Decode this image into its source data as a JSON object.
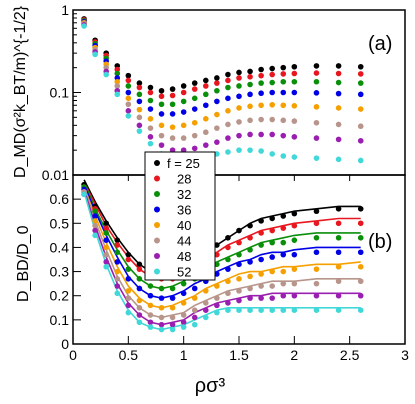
{
  "chart_data": [
    {
      "type": "scatter",
      "panel_label": "(a)",
      "ylabel": "D_MD(σ²k_BT/m)^{-1/2}",
      "yscale": "log",
      "ylim": [
        0.01,
        1
      ],
      "yticks": [
        {
          "v": 1,
          "t": "1"
        },
        {
          "v": 0.1,
          "t": "0.1"
        },
        {
          "v": 0.01,
          "t": "0.01"
        }
      ],
      "xlim": [
        0,
        3
      ],
      "x": [
        0.1,
        0.2,
        0.3,
        0.4,
        0.5,
        0.6,
        0.7,
        0.8,
        0.9,
        1.0,
        1.1,
        1.2,
        1.3,
        1.4,
        1.5,
        1.6,
        1.7,
        1.8,
        1.9,
        2.0,
        2.2,
        2.4,
        2.6
      ],
      "series": [
        {
          "name": "25",
          "color": "#000000",
          "values": [
            0.78,
            0.43,
            0.3,
            0.21,
            0.16,
            0.13,
            0.115,
            0.105,
            0.11,
            0.12,
            0.13,
            0.14,
            0.15,
            0.165,
            0.175,
            0.18,
            0.19,
            0.195,
            0.2,
            0.205,
            0.21,
            0.21,
            0.205
          ]
        },
        {
          "name": "28",
          "color": "#e8161e",
          "values": [
            0.76,
            0.41,
            0.28,
            0.19,
            0.14,
            0.115,
            0.1,
            0.09,
            0.092,
            0.1,
            0.11,
            0.12,
            0.13,
            0.14,
            0.15,
            0.155,
            0.16,
            0.165,
            0.168,
            0.17,
            0.172,
            0.17,
            0.168
          ]
        },
        {
          "name": "32",
          "color": "#0a8f0a",
          "values": [
            0.74,
            0.39,
            0.26,
            0.17,
            0.12,
            0.095,
            0.08,
            0.072,
            0.072,
            0.078,
            0.085,
            0.095,
            0.105,
            0.115,
            0.12,
            0.125,
            0.13,
            0.132,
            0.135,
            0.135,
            0.135,
            0.132,
            0.13
          ]
        },
        {
          "name": "36",
          "color": "#0000e6",
          "values": [
            0.72,
            0.37,
            0.24,
            0.15,
            0.1,
            0.078,
            0.063,
            0.055,
            0.055,
            0.058,
            0.063,
            0.07,
            0.078,
            0.085,
            0.09,
            0.095,
            0.098,
            0.1,
            0.1,
            0.1,
            0.099,
            0.097,
            0.095
          ]
        },
        {
          "name": "40",
          "color": "#f5a000",
          "values": [
            0.7,
            0.35,
            0.22,
            0.135,
            0.085,
            0.062,
            0.048,
            0.04,
            0.038,
            0.04,
            0.043,
            0.048,
            0.054,
            0.06,
            0.065,
            0.068,
            0.07,
            0.071,
            0.07,
            0.069,
            0.067,
            0.065,
            0.063
          ]
        },
        {
          "name": "44",
          "color": "#b8958b",
          "values": [
            0.68,
            0.33,
            0.2,
            0.12,
            0.072,
            0.05,
            0.037,
            0.03,
            0.028,
            0.028,
            0.03,
            0.033,
            0.037,
            0.041,
            0.044,
            0.046,
            0.047,
            0.047,
            0.046,
            0.045,
            0.043,
            0.041,
            0.039
          ]
        },
        {
          "name": "48",
          "color": "#9a1fb0",
          "values": [
            0.66,
            0.31,
            0.18,
            0.105,
            0.06,
            0.04,
            0.029,
            0.023,
            0.02,
            0.02,
            0.021,
            0.023,
            0.025,
            0.028,
            0.03,
            0.031,
            0.031,
            0.031,
            0.03,
            0.029,
            0.028,
            0.027,
            0.026
          ]
        },
        {
          "name": "52",
          "color": "#40d8d8",
          "values": [
            0.64,
            0.29,
            0.165,
            0.095,
            0.052,
            0.034,
            0.024,
            0.018,
            0.0155,
            0.015,
            0.0155,
            0.016,
            0.018,
            0.019,
            0.02,
            0.02,
            0.0195,
            0.018,
            0.017,
            0.0165,
            0.016,
            0.0155,
            0.015
          ]
        }
      ],
      "legend": {
        "title_prefix": "f = ",
        "placement": "lower-left"
      }
    },
    {
      "type": "scatter",
      "panel_label": "(b)",
      "ylabel": "D_BD/D_0",
      "xlabel": "ρσ³",
      "xlim": [
        0,
        3
      ],
      "ylim": [
        0,
        0.7
      ],
      "xticks": [
        {
          "v": 0,
          "t": "0"
        },
        {
          "v": 0.5,
          "t": "0.5"
        },
        {
          "v": 1,
          "t": "1"
        },
        {
          "v": 1.5,
          "t": "1.5"
        },
        {
          "v": 2,
          "t": "2"
        },
        {
          "v": 2.5,
          "t": "2.5"
        },
        {
          "v": 3,
          "t": "3"
        }
      ],
      "yticks": [
        {
          "v": 0,
          "t": "0"
        },
        {
          "v": 0.1,
          "t": "0.1"
        },
        {
          "v": 0.2,
          "t": "0.2"
        },
        {
          "v": 0.3,
          "t": "0.3"
        },
        {
          "v": 0.4,
          "t": "0.4"
        },
        {
          "v": 0.5,
          "t": "0.5"
        },
        {
          "v": 0.6,
          "t": "0.6"
        }
      ],
      "x": [
        0.1,
        0.2,
        0.3,
        0.4,
        0.5,
        0.6,
        0.7,
        0.8,
        0.9,
        1.0,
        1.1,
        1.2,
        1.3,
        1.4,
        1.5,
        1.6,
        1.7,
        1.8,
        1.9,
        2.0,
        2.2,
        2.4,
        2.6
      ],
      "series": [
        {
          "name": "25",
          "color": "#000000",
          "values": [
            0.66,
            0.57,
            0.5,
            0.43,
            0.37,
            0.33,
            0.3,
            0.29,
            0.29,
            0.31,
            0.34,
            0.37,
            0.41,
            0.44,
            0.47,
            0.49,
            0.51,
            0.52,
            0.53,
            0.54,
            0.55,
            0.56,
            0.56
          ],
          "fit": [
            0.68,
            0.59,
            0.51,
            0.44,
            0.38,
            0.33,
            0.3,
            0.29,
            0.3,
            0.32,
            0.35,
            0.38,
            0.41,
            0.44,
            0.47,
            0.5,
            0.52,
            0.53,
            0.54,
            0.55,
            0.56,
            0.57,
            0.57
          ]
        },
        {
          "name": "28",
          "color": "#e8161e",
          "values": [
            0.65,
            0.56,
            0.48,
            0.41,
            0.35,
            0.31,
            0.28,
            0.27,
            0.27,
            0.29,
            0.31,
            0.34,
            0.37,
            0.4,
            0.42,
            0.44,
            0.46,
            0.47,
            0.48,
            0.49,
            0.5,
            0.5,
            0.5
          ],
          "fit": [
            0.67,
            0.58,
            0.49,
            0.42,
            0.36,
            0.31,
            0.28,
            0.27,
            0.28,
            0.3,
            0.33,
            0.35,
            0.38,
            0.41,
            0.43,
            0.45,
            0.47,
            0.48,
            0.49,
            0.5,
            0.51,
            0.52,
            0.52
          ]
        },
        {
          "name": "32",
          "color": "#0a8f0a",
          "values": [
            0.65,
            0.55,
            0.46,
            0.38,
            0.31,
            0.27,
            0.24,
            0.23,
            0.23,
            0.25,
            0.27,
            0.3,
            0.33,
            0.35,
            0.37,
            0.39,
            0.41,
            0.42,
            0.42,
            0.43,
            0.44,
            0.44,
            0.44
          ],
          "fit": [
            0.67,
            0.56,
            0.47,
            0.39,
            0.32,
            0.27,
            0.24,
            0.23,
            0.24,
            0.26,
            0.29,
            0.31,
            0.34,
            0.36,
            0.38,
            0.4,
            0.42,
            0.43,
            0.44,
            0.45,
            0.46,
            0.46,
            0.46
          ]
        },
        {
          "name": "36",
          "color": "#0000e6",
          "values": [
            0.64,
            0.53,
            0.43,
            0.34,
            0.27,
            0.23,
            0.2,
            0.19,
            0.19,
            0.21,
            0.23,
            0.26,
            0.29,
            0.31,
            0.33,
            0.34,
            0.35,
            0.36,
            0.37,
            0.37,
            0.38,
            0.38,
            0.38
          ],
          "fit": [
            0.66,
            0.55,
            0.45,
            0.36,
            0.28,
            0.23,
            0.2,
            0.19,
            0.2,
            0.22,
            0.25,
            0.27,
            0.3,
            0.32,
            0.34,
            0.35,
            0.37,
            0.38,
            0.38,
            0.39,
            0.4,
            0.4,
            0.4
          ]
        },
        {
          "name": "40",
          "color": "#f5a000",
          "values": [
            0.63,
            0.51,
            0.4,
            0.3,
            0.22,
            0.18,
            0.16,
            0.15,
            0.15,
            0.17,
            0.19,
            0.22,
            0.24,
            0.26,
            0.27,
            0.28,
            0.29,
            0.3,
            0.3,
            0.31,
            0.31,
            0.32,
            0.32
          ],
          "fit": [
            0.65,
            0.53,
            0.42,
            0.32,
            0.24,
            0.19,
            0.16,
            0.15,
            0.16,
            0.18,
            0.2,
            0.23,
            0.25,
            0.27,
            0.29,
            0.3,
            0.3,
            0.31,
            0.32,
            0.32,
            0.33,
            0.33,
            0.34
          ]
        },
        {
          "name": "44",
          "color": "#b8958b",
          "values": [
            0.63,
            0.49,
            0.37,
            0.27,
            0.19,
            0.15,
            0.12,
            0.11,
            0.11,
            0.12,
            0.14,
            0.17,
            0.19,
            0.21,
            0.22,
            0.23,
            0.24,
            0.24,
            0.25,
            0.25,
            0.25,
            0.26,
            0.26
          ],
          "fit": [
            0.65,
            0.51,
            0.39,
            0.28,
            0.2,
            0.15,
            0.12,
            0.11,
            0.12,
            0.13,
            0.16,
            0.18,
            0.2,
            0.22,
            0.23,
            0.24,
            0.25,
            0.26,
            0.26,
            0.26,
            0.27,
            0.27,
            0.27
          ]
        },
        {
          "name": "48",
          "color": "#9a1fb0",
          "values": [
            0.62,
            0.47,
            0.34,
            0.24,
            0.16,
            0.12,
            0.09,
            0.08,
            0.08,
            0.09,
            0.11,
            0.14,
            0.16,
            0.17,
            0.18,
            0.19,
            0.19,
            0.19,
            0.2,
            0.2,
            0.2,
            0.2,
            0.2
          ],
          "fit": [
            0.64,
            0.49,
            0.36,
            0.25,
            0.17,
            0.12,
            0.09,
            0.08,
            0.09,
            0.1,
            0.13,
            0.15,
            0.17,
            0.18,
            0.19,
            0.2,
            0.2,
            0.21,
            0.21,
            0.21,
            0.21,
            0.21,
            0.21
          ]
        },
        {
          "name": "52",
          "color": "#40d8d8",
          "values": [
            0.62,
            0.45,
            0.32,
            0.21,
            0.13,
            0.09,
            0.07,
            0.06,
            0.06,
            0.07,
            0.08,
            0.11,
            0.13,
            0.14,
            0.14,
            0.14,
            0.14,
            0.14,
            0.14,
            0.14,
            0.14,
            0.14,
            0.14
          ],
          "fit": [
            0.63,
            0.47,
            0.33,
            0.22,
            0.14,
            0.09,
            0.07,
            0.06,
            0.07,
            0.08,
            0.1,
            0.12,
            0.14,
            0.15,
            0.15,
            0.15,
            0.15,
            0.15,
            0.15,
            0.15,
            0.15,
            0.15,
            0.15
          ]
        }
      ]
    }
  ]
}
